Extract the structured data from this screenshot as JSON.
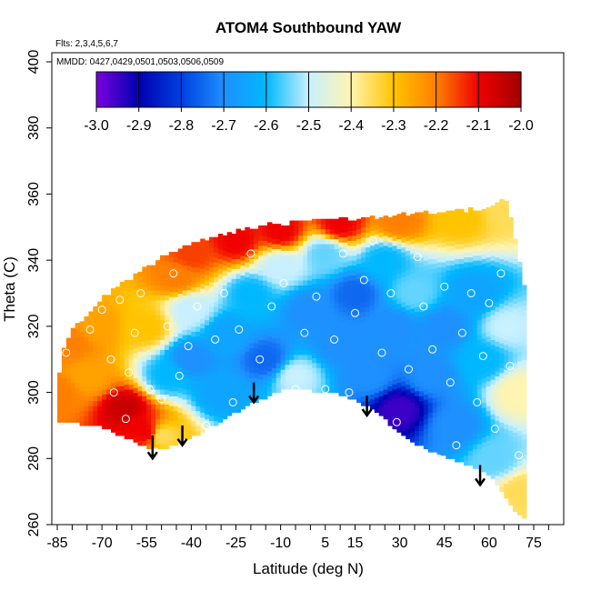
{
  "chart_data": {
    "type": "heatmap",
    "title": "ATOM4 Southbound YAW",
    "flights_note": "Flts: 2,3,4,5,6,7",
    "dates_note": "MMDD: 0427,0429,0501,0503,0506,0509",
    "xlabel": "Latitude (deg N)",
    "ylabel": "Theta (C)",
    "xlim": [
      -88,
      82
    ],
    "ylim": [
      260,
      400
    ],
    "x_ticks": [
      -85,
      -70,
      -55,
      -40,
      -25,
      -10,
      5,
      15,
      30,
      45,
      60,
      75
    ],
    "x_tick_labels": [
      "-85",
      "-70",
      "-55",
      "-40",
      "-25",
      "-10",
      "5",
      "15",
      "30",
      "45",
      "60",
      "75"
    ],
    "x_minor_step": 5,
    "y_ticks": [
      260,
      280,
      300,
      320,
      340,
      360,
      380,
      400
    ],
    "y_tick_labels": [
      "260",
      "280",
      "300",
      "320",
      "340",
      "360",
      "380",
      "400"
    ],
    "colorbar": {
      "min": -3.0,
      "max": -2.0,
      "ticks": [
        -3.0,
        -2.9,
        -2.8,
        -2.7,
        -2.6,
        -2.5,
        -2.4,
        -2.3,
        -2.2,
        -2.1,
        -2.0
      ],
      "tick_labels": [
        "-3.0",
        "-2.9",
        "-2.8",
        "-2.7",
        "-2.6",
        "-2.5",
        "-2.4",
        "-2.3",
        "-2.2",
        "-2.1",
        "-2.0"
      ],
      "colors": [
        "#7a00e0",
        "#0000b0",
        "#0040e0",
        "#1e90ff",
        "#00b8ff",
        "#c8f0ff",
        "#fff4b0",
        "#ffc400",
        "#ff8000",
        "#f00000",
        "#a00000"
      ]
    },
    "domain_bottom": [
      [
        -85,
        291
      ],
      [
        -78,
        291
      ],
      [
        -70,
        290
      ],
      [
        -60,
        286
      ],
      [
        -55,
        284
      ],
      [
        -50,
        283
      ],
      [
        -45,
        285
      ],
      [
        -40,
        287
      ],
      [
        -35,
        289
      ],
      [
        -28,
        293
      ],
      [
        -20,
        297
      ],
      [
        -10,
        301
      ],
      [
        0,
        301
      ],
      [
        10,
        300
      ],
      [
        20,
        296
      ],
      [
        28,
        290
      ],
      [
        35,
        285
      ],
      [
        45,
        281
      ],
      [
        55,
        278
      ],
      [
        62,
        274
      ],
      [
        68,
        265
      ],
      [
        72,
        262
      ]
    ],
    "domain_top": [
      [
        -85,
        291
      ],
      [
        -84,
        310
      ],
      [
        -80,
        318
      ],
      [
        -75,
        323
      ],
      [
        -70,
        328
      ],
      [
        -60,
        334
      ],
      [
        -50,
        340
      ],
      [
        -40,
        344
      ],
      [
        -30,
        347
      ],
      [
        -15,
        350
      ],
      [
        0,
        351
      ],
      [
        15,
        352
      ],
      [
        30,
        353
      ],
      [
        45,
        354
      ],
      [
        60,
        355
      ],
      [
        66,
        358
      ],
      [
        72,
        330
      ],
      [
        72,
        262
      ]
    ],
    "field_points": [
      {
        "lat": -84,
        "theta": 300,
        "value": -2.2
      },
      {
        "lat": -80,
        "theta": 315,
        "value": -2.2
      },
      {
        "lat": -75,
        "theta": 305,
        "value": -2.25
      },
      {
        "lat": -72,
        "theta": 320,
        "value": -2.25
      },
      {
        "lat": -62,
        "theta": 295,
        "value": -2.05
      },
      {
        "lat": -58,
        "theta": 290,
        "value": -2.1
      },
      {
        "lat": -55,
        "theta": 288,
        "value": -2.1
      },
      {
        "lat": -50,
        "theta": 287,
        "value": -2.35
      },
      {
        "lat": -55,
        "theta": 320,
        "value": -2.3
      },
      {
        "lat": -45,
        "theta": 335,
        "value": -2.2
      },
      {
        "lat": -40,
        "theta": 342,
        "value": -2.15
      },
      {
        "lat": -25,
        "theta": 346,
        "value": -2.1
      },
      {
        "lat": -10,
        "theta": 349,
        "value": -2.1
      },
      {
        "lat": 10,
        "theta": 351,
        "value": -2.1
      },
      {
        "lat": 30,
        "theta": 352,
        "value": -2.2
      },
      {
        "lat": 50,
        "theta": 353,
        "value": -2.3
      },
      {
        "lat": 66,
        "theta": 356,
        "value": -2.35
      },
      {
        "lat": -48,
        "theta": 305,
        "value": -2.6
      },
      {
        "lat": -40,
        "theta": 310,
        "value": -2.7
      },
      {
        "lat": -40,
        "theta": 325,
        "value": -2.5
      },
      {
        "lat": -30,
        "theta": 300,
        "value": -2.65
      },
      {
        "lat": -28,
        "theta": 318,
        "value": -2.65
      },
      {
        "lat": -20,
        "theta": 330,
        "value": -2.6
      },
      {
        "lat": -15,
        "theta": 310,
        "value": -2.75
      },
      {
        "lat": -5,
        "theta": 305,
        "value": -2.5
      },
      {
        "lat": -10,
        "theta": 338,
        "value": -2.5
      },
      {
        "lat": 0,
        "theta": 325,
        "value": -2.7
      },
      {
        "lat": 5,
        "theta": 342,
        "value": -2.55
      },
      {
        "lat": 10,
        "theta": 315,
        "value": -2.7
      },
      {
        "lat": 15,
        "theta": 330,
        "value": -2.75
      },
      {
        "lat": 20,
        "theta": 305,
        "value": -2.7
      },
      {
        "lat": 25,
        "theta": 340,
        "value": -2.6
      },
      {
        "lat": 28,
        "theta": 320,
        "value": -2.7
      },
      {
        "lat": 30,
        "theta": 295,
        "value": -2.95
      },
      {
        "lat": 35,
        "theta": 330,
        "value": -2.55
      },
      {
        "lat": 40,
        "theta": 305,
        "value": -2.7
      },
      {
        "lat": 45,
        "theta": 320,
        "value": -2.7
      },
      {
        "lat": 48,
        "theta": 290,
        "value": -2.7
      },
      {
        "lat": 55,
        "theta": 330,
        "value": -2.65
      },
      {
        "lat": 58,
        "theta": 310,
        "value": -2.6
      },
      {
        "lat": 62,
        "theta": 280,
        "value": -2.55
      },
      {
        "lat": 66,
        "theta": 320,
        "value": -2.5
      },
      {
        "lat": 70,
        "theta": 300,
        "value": -2.4
      },
      {
        "lat": 71,
        "theta": 270,
        "value": -2.35
      }
    ],
    "observation_points": [
      {
        "lat": -82,
        "theta": 312
      },
      {
        "lat": -78,
        "theta": 285
      },
      {
        "lat": -74,
        "theta": 319
      },
      {
        "lat": -70,
        "theta": 325
      },
      {
        "lat": -67,
        "theta": 310
      },
      {
        "lat": -66,
        "theta": 300
      },
      {
        "lat": -64,
        "theta": 328
      },
      {
        "lat": -62,
        "theta": 292
      },
      {
        "lat": -61,
        "theta": 306
      },
      {
        "lat": -59,
        "theta": 318
      },
      {
        "lat": -57,
        "theta": 330
      },
      {
        "lat": -54,
        "theta": 301
      },
      {
        "lat": -52,
        "theta": 282
      },
      {
        "lat": -50,
        "theta": 298
      },
      {
        "lat": -48,
        "theta": 320
      },
      {
        "lat": -46,
        "theta": 336
      },
      {
        "lat": -44,
        "theta": 305
      },
      {
        "lat": -41,
        "theta": 314
      },
      {
        "lat": -38,
        "theta": 326
      },
      {
        "lat": -35,
        "theta": 290
      },
      {
        "lat": -32,
        "theta": 316
      },
      {
        "lat": -29,
        "theta": 330
      },
      {
        "lat": -26,
        "theta": 297
      },
      {
        "lat": -24,
        "theta": 319
      },
      {
        "lat": -20,
        "theta": 342
      },
      {
        "lat": -17,
        "theta": 310
      },
      {
        "lat": -13,
        "theta": 326
      },
      {
        "lat": -9,
        "theta": 333
      },
      {
        "lat": -5,
        "theta": 301
      },
      {
        "lat": -2,
        "theta": 318
      },
      {
        "lat": 2,
        "theta": 329
      },
      {
        "lat": 5,
        "theta": 301
      },
      {
        "lat": 8,
        "theta": 316
      },
      {
        "lat": 11,
        "theta": 342
      },
      {
        "lat": 13,
        "theta": 300
      },
      {
        "lat": 15,
        "theta": 324
      },
      {
        "lat": 18,
        "theta": 334
      },
      {
        "lat": 21,
        "theta": 346
      },
      {
        "lat": 24,
        "theta": 312
      },
      {
        "lat": 27,
        "theta": 330
      },
      {
        "lat": 29,
        "theta": 291
      },
      {
        "lat": 33,
        "theta": 307
      },
      {
        "lat": 36,
        "theta": 341
      },
      {
        "lat": 38,
        "theta": 326
      },
      {
        "lat": 41,
        "theta": 313
      },
      {
        "lat": 43,
        "theta": 280
      },
      {
        "lat": 45,
        "theta": 332
      },
      {
        "lat": 47,
        "theta": 303
      },
      {
        "lat": 49,
        "theta": 284
      },
      {
        "lat": 51,
        "theta": 318
      },
      {
        "lat": 54,
        "theta": 330
      },
      {
        "lat": 56,
        "theta": 297
      },
      {
        "lat": 58,
        "theta": 311
      },
      {
        "lat": 60,
        "theta": 327
      },
      {
        "lat": 62,
        "theta": 289
      },
      {
        "lat": 64,
        "theta": 336
      },
      {
        "lat": 67,
        "theta": 308
      },
      {
        "lat": 70,
        "theta": 281
      }
    ],
    "arrows": [
      {
        "lat": -53,
        "theta_top": 287,
        "theta_bottom": 280
      },
      {
        "lat": -43,
        "theta_top": 290,
        "theta_bottom": 284
      },
      {
        "lat": -19,
        "theta_top": 303,
        "theta_bottom": 297
      },
      {
        "lat": 19,
        "theta_top": 299,
        "theta_bottom": 293
      },
      {
        "lat": 57,
        "theta_top": 278,
        "theta_bottom": 272
      }
    ]
  }
}
